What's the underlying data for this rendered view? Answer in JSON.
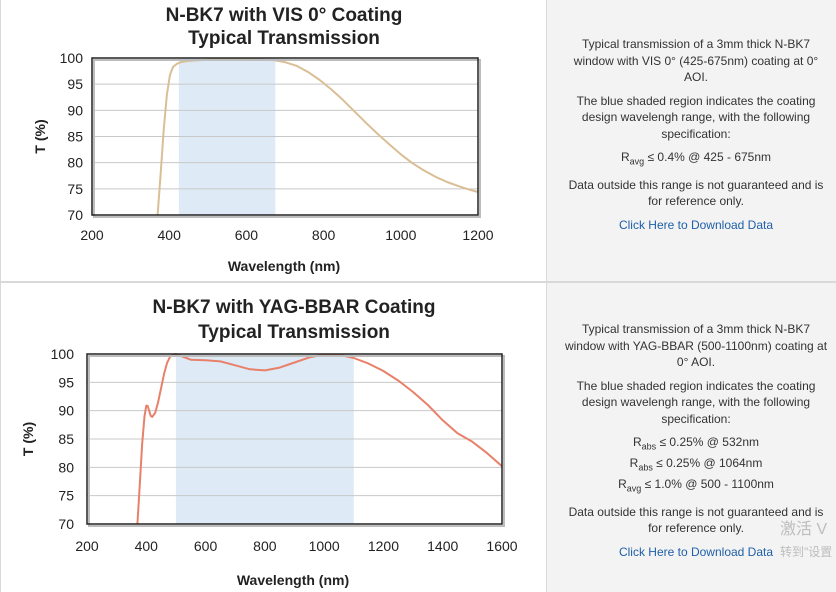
{
  "chart_data": [
    {
      "type": "line",
      "title": "N-BK7 with VIS 0° Coating",
      "subtitle": "Typical Transmission",
      "xlabel": "Wavelength (nm)",
      "ylabel": "T (%)",
      "xlim": [
        200,
        1200
      ],
      "ylim": [
        70,
        100
      ],
      "xticks": [
        "200",
        "400",
        "600",
        "800",
        "1000",
        "1200"
      ],
      "yticks": [
        "70",
        "75",
        "80",
        "85",
        "90",
        "95",
        "100"
      ],
      "grid": true,
      "line_color": "#d9bf95",
      "shade_color": "#deebf7",
      "shaded_range": [
        425,
        675
      ],
      "series": [
        {
          "x": [
            370,
            378,
            386,
            394,
            402,
            410,
            420,
            430,
            445,
            460,
            480,
            500,
            530,
            560,
            600,
            640,
            670,
            700,
            730,
            760,
            790,
            820,
            850,
            880,
            910,
            940,
            970,
            1000,
            1030,
            1060,
            1090,
            1120,
            1150,
            1180,
            1200
          ],
          "y": [
            70.0,
            78.0,
            86.5,
            93.0,
            96.8,
            98.3,
            98.9,
            99.2,
            99.4,
            99.5,
            99.6,
            99.7,
            99.8,
            99.8,
            99.7,
            99.7,
            99.6,
            99.2,
            98.5,
            97.3,
            95.8,
            94.0,
            92.0,
            89.8,
            87.6,
            85.5,
            83.5,
            81.6,
            79.9,
            78.5,
            77.3,
            76.3,
            75.5,
            74.8,
            74.4
          ]
        }
      ]
    },
    {
      "type": "line",
      "title": "N-BK7 with YAG-BBAR Coating",
      "subtitle": "Typical Transmission",
      "xlabel": "Wavelength (nm)",
      "ylabel": "T (%)",
      "xlim": [
        200,
        1600
      ],
      "ylim": [
        70,
        100
      ],
      "xticks": [
        "200",
        "400",
        "600",
        "800",
        "1000",
        "1200",
        "1400",
        "1600"
      ],
      "yticks": [
        "70",
        "75",
        "80",
        "85",
        "90",
        "95",
        "100"
      ],
      "grid": true,
      "line_color": "#e8806a",
      "shade_color": "#deebf7",
      "shaded_range": [
        500,
        1100
      ],
      "series": [
        {
          "x": [
            370,
            378,
            386,
            394,
            400,
            405,
            410,
            415,
            420,
            430,
            440,
            450,
            460,
            470,
            480,
            490,
            500,
            520,
            550,
            600,
            650,
            700,
            750,
            800,
            850,
            900,
            950,
            1000,
            1050,
            1100,
            1150,
            1200,
            1250,
            1300,
            1350,
            1400,
            1450,
            1500,
            1550,
            1600
          ],
          "y": [
            70.0,
            77.0,
            84.0,
            89.0,
            90.9,
            90.8,
            89.9,
            89.1,
            88.9,
            89.6,
            91.5,
            94.0,
            96.5,
            98.4,
            99.5,
            99.9,
            100.0,
            99.6,
            99.0,
            98.9,
            98.7,
            98.0,
            97.3,
            97.1,
            97.6,
            98.5,
            99.4,
            99.9,
            99.9,
            99.3,
            98.3,
            97.0,
            95.3,
            93.3,
            91.0,
            88.3,
            86.0,
            84.5,
            82.5,
            80.2
          ]
        }
      ]
    }
  ],
  "info_panels": [
    {
      "description": "Typical transmission of a 3mm thick N-BK7 window with VIS 0° (425-675nm) coating at 0° AOI.",
      "shaded_note": "The blue shaded region indicates the coating design wavelengh range, with the following specification:",
      "specs": [
        {
          "sym": "R",
          "sub": "avg",
          "text": "≤ 0.4% @ 425 - 675nm"
        }
      ],
      "disclaimer": "Data outside this range is not guaranteed and is for reference only.",
      "download": "Click Here to Download Data"
    },
    {
      "description": "Typical transmission of a 3mm thick N-BK7 window with YAG-BBAR (500-1100nm) coating at 0° AOI.",
      "shaded_note": "The blue shaded region indicates the coating design wavelengh range, with the following specification:",
      "specs": [
        {
          "sym": "R",
          "sub": "abs",
          "text": "≤ 0.25% @ 532nm"
        },
        {
          "sym": "R",
          "sub": "abs",
          "text": "≤ 0.25% @ 1064nm"
        },
        {
          "sym": "R",
          "sub": "avg",
          "text": "≤ 1.0% @ 500 - 1100nm"
        }
      ],
      "disclaimer": "Data outside this range is not guaranteed and is for reference only.",
      "download": "Click Here to Download Data"
    }
  ],
  "watermark": {
    "line1": "激活 V",
    "line2": "转到\"设置"
  }
}
